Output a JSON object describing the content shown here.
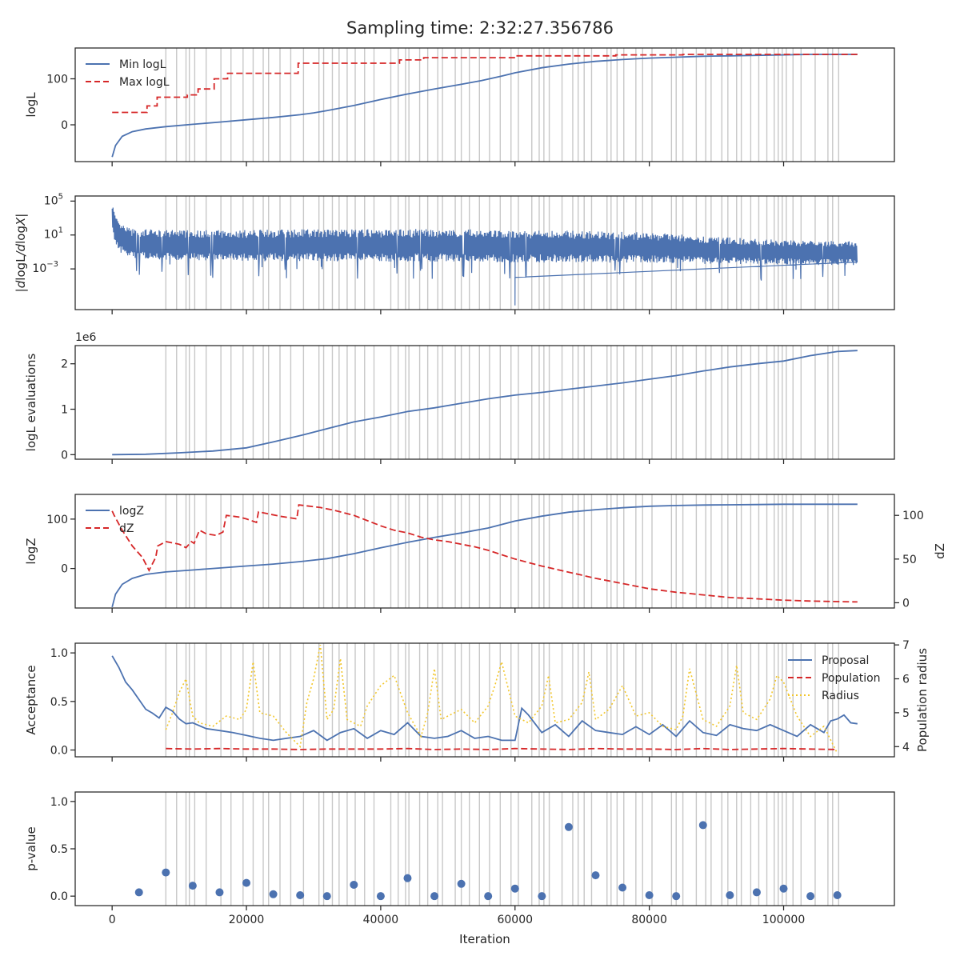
{
  "title": "Sampling time: 2:32:27.356786",
  "xlabel": "Iteration",
  "colors": {
    "blue": "#4c72b0",
    "red": "#d62728",
    "yellow": "#f2c62b",
    "vline": "#c8c8c8",
    "axis": "#262626"
  },
  "chart_data": [
    {
      "type": "line",
      "panel": "logL",
      "ylabel": "logL",
      "xlim": [
        -5500,
        116500
      ],
      "ylim": [
        -80,
        167
      ],
      "yticks": [
        0,
        100
      ],
      "legend_position": "top-left",
      "series": [
        {
          "name": "Min logL",
          "style": "solid",
          "color": "#4c72b0",
          "x": [
            0,
            500,
            1500,
            3000,
            5000,
            8000,
            12000,
            16000,
            20000,
            24000,
            28000,
            30000,
            32000,
            36000,
            40000,
            44000,
            48000,
            52000,
            55000,
            58000,
            60000,
            64000,
            68000,
            72000,
            76000,
            80000,
            84000,
            88000,
            92000,
            96000,
            100000,
            104000,
            108000,
            111000
          ],
          "y": [
            -70,
            -45,
            -25,
            -15,
            -9,
            -4,
            1,
            6,
            11,
            16,
            22,
            26,
            31,
            42,
            55,
            67,
            78,
            88,
            96,
            106,
            113,
            124,
            132,
            138,
            142,
            145,
            147,
            149,
            150,
            151,
            152,
            153,
            153,
            153
          ]
        },
        {
          "name": "Max logL",
          "style": "dashed",
          "color": "#d62728",
          "x": [
            0,
            5200,
            5200,
            6700,
            6700,
            11200,
            11200,
            12800,
            12800,
            15200,
            15200,
            17200,
            17200,
            27700,
            27700,
            42800,
            42800,
            46400,
            46400,
            60000,
            60000,
            75000,
            75000,
            85000,
            85000,
            111000
          ],
          "y": [
            27,
            27,
            41,
            41,
            60,
            60,
            65,
            65,
            78,
            78,
            100,
            100,
            112,
            112,
            134,
            134,
            141,
            141,
            146,
            146,
            150,
            150,
            152,
            152,
            153,
            153
          ]
        }
      ],
      "vlines": [
        8000,
        9600,
        11000,
        11500,
        12300,
        14000,
        16200,
        17700,
        19500,
        21000,
        22500,
        23300,
        25000,
        26600,
        28500,
        30800,
        31500,
        32800,
        33800,
        35000,
        36200,
        37600,
        39000,
        41500,
        42600,
        43700,
        44200,
        45800,
        47000,
        48500,
        49200,
        51100,
        52000,
        53200,
        54700,
        56200,
        57800,
        59400,
        60500,
        62500,
        63600,
        64300,
        65100,
        67000,
        68600,
        69400,
        70300,
        71400,
        73700,
        74300,
        75200,
        76200,
        78000,
        79000,
        80400,
        83300,
        84000,
        85000,
        87000,
        88400,
        89200,
        90800,
        91700,
        93000,
        93700,
        95100,
        96300,
        97500,
        98600,
        99200,
        99800,
        100400,
        101400,
        102600,
        104700,
        106600,
        107300,
        108200
      ]
    },
    {
      "type": "line",
      "panel": "dlogL",
      "ylabel": "|dlogL/dlogX|",
      "yscale": "log",
      "ylim_log10": [
        -7.8,
        5.6
      ],
      "yticks_log10": [
        -3,
        1,
        5
      ],
      "ytick_labels": [
        "10",
        "10",
        "10"
      ],
      "ytick_exponents": [
        "−3",
        "1",
        "5"
      ],
      "series": [
        {
          "name": "",
          "style": "noisy band",
          "color": "#4c72b0",
          "x": [
            0,
            400,
            1000,
            3000,
            10000,
            20000,
            30000,
            40000,
            50000,
            60000,
            70000,
            80000,
            90000,
            100000,
            111000
          ],
          "top_log10": [
            5.0,
            3.5,
            2.4,
            1.7,
            1.6,
            1.6,
            1.7,
            1.7,
            1.7,
            1.6,
            1.5,
            1.3,
            0.8,
            0.4,
            0.3
          ],
          "bottom_log10": [
            1.0,
            -0.5,
            -1.5,
            -2.3,
            -2.5,
            -2.6,
            -2.7,
            -2.7,
            -2.7,
            -2.8,
            -2.8,
            -2.8,
            -2.9,
            -2.9,
            -3.0
          ]
        }
      ]
    },
    {
      "type": "line",
      "panel": "evaluations",
      "ylabel": "logL evaluations",
      "offset_label": "1e6",
      "ylim": [
        -0.1,
        2.4
      ],
      "yticks": [
        0,
        1,
        2
      ],
      "series": [
        {
          "name": "",
          "style": "solid",
          "color": "#4c72b0",
          "x": [
            0,
            5000,
            10000,
            15000,
            20000,
            24000,
            28000,
            32000,
            36000,
            40000,
            44000,
            48000,
            52000,
            56000,
            60000,
            64000,
            68000,
            72000,
            76000,
            80000,
            84000,
            88000,
            92000,
            96000,
            100000,
            104000,
            108000,
            111000
          ],
          "y": [
            0.0,
            0.01,
            0.04,
            0.08,
            0.15,
            0.28,
            0.42,
            0.57,
            0.72,
            0.83,
            0.95,
            1.03,
            1.13,
            1.23,
            1.31,
            1.37,
            1.44,
            1.51,
            1.58,
            1.66,
            1.74,
            1.84,
            1.93,
            2.0,
            2.06,
            2.18,
            2.27,
            2.29
          ]
        }
      ]
    },
    {
      "type": "line",
      "panel": "logZ",
      "ylabel": "logZ",
      "ylabel_right": "dZ",
      "ylim": [
        -80,
        150
      ],
      "yticks": [
        0,
        100
      ],
      "ylim_right": [
        -6,
        124
      ],
      "yticks_right": [
        0,
        50,
        100
      ],
      "legend_position": "top-left",
      "series": [
        {
          "name": "logZ",
          "style": "solid",
          "color": "#4c72b0",
          "axis": "left",
          "x": [
            0,
            500,
            1500,
            3000,
            5000,
            8000,
            12000,
            16000,
            20000,
            24000,
            28000,
            32000,
            36000,
            40000,
            44000,
            48000,
            52000,
            56000,
            60000,
            64000,
            68000,
            72000,
            76000,
            80000,
            84000,
            88000,
            92000,
            96000,
            100000,
            104000,
            108000,
            111000
          ],
          "y": [
            -78,
            -52,
            -32,
            -20,
            -12,
            -7,
            -3,
            1,
            5,
            9,
            14,
            20,
            30,
            42,
            53,
            63,
            72,
            82,
            96,
            106,
            114,
            119,
            123,
            126,
            127.5,
            128.5,
            129,
            129.5,
            130,
            130,
            130,
            130
          ]
        },
        {
          "name": "dZ",
          "style": "dashed",
          "color": "#d62728",
          "axis": "right",
          "x": [
            0,
            300,
            1500,
            3000,
            4500,
            5500,
            6500,
            6800,
            8000,
            10000,
            11000,
            11800,
            12200,
            13000,
            14000,
            15500,
            16500,
            17000,
            18000,
            19000,
            20000,
            21500,
            21800,
            25000,
            27500,
            27800,
            31000,
            33000,
            36000,
            40000,
            42000,
            44000,
            46000,
            48000,
            50000,
            52000,
            54000,
            56000,
            58000,
            60000,
            64000,
            68000,
            72000,
            76000,
            80000,
            84000,
            88000,
            92000,
            96000,
            100000,
            104000,
            108000,
            111000
          ],
          "y": [
            105,
            100,
            83,
            65,
            52,
            37,
            52,
            65,
            70,
            67,
            63,
            70,
            68,
            83,
            79,
            77,
            81,
            100,
            99,
            98,
            96,
            92,
            104,
            99,
            96,
            112,
            109,
            106,
            100,
            88,
            83,
            80,
            75,
            72,
            70,
            67,
            64,
            60,
            55,
            50,
            42,
            35,
            28,
            22,
            16,
            12,
            9,
            6,
            4.5,
            3,
            2,
            1.3,
            1
          ]
        }
      ]
    },
    {
      "type": "line",
      "panel": "acceptance",
      "ylabel": "Acceptance",
      "ylabel_right": "Population radius",
      "ylim": [
        -0.07,
        1.1
      ],
      "yticks": [
        0.0,
        0.5,
        1.0
      ],
      "ylim_right": [
        3.7,
        7.05
      ],
      "yticks_right": [
        4,
        5,
        6,
        7
      ],
      "legend_position": "top-right",
      "series": [
        {
          "name": "Proposal",
          "style": "solid",
          "color": "#4c72b0",
          "axis": "left",
          "x": [
            0,
            1000,
            2000,
            3000,
            4000,
            5000,
            6000,
            7000,
            8000,
            9000,
            10000,
            11000,
            12000,
            14000,
            16000,
            18000,
            20000,
            22000,
            24000,
            26000,
            28000,
            30000,
            32000,
            34000,
            36000,
            38000,
            40000,
            42000,
            44000,
            46000,
            48000,
            50000,
            52000,
            54000,
            56000,
            58000,
            60000,
            61000,
            62000,
            64000,
            66000,
            68000,
            70000,
            72000,
            74000,
            76000,
            78000,
            80000,
            82000,
            84000,
            86000,
            88000,
            90000,
            92000,
            94000,
            96000,
            98000,
            100000,
            102000,
            104000,
            106000,
            107000,
            108000,
            109000,
            110000,
            111000
          ],
          "y": [
            0.97,
            0.85,
            0.7,
            0.62,
            0.52,
            0.42,
            0.38,
            0.33,
            0.44,
            0.4,
            0.32,
            0.27,
            0.28,
            0.22,
            0.2,
            0.18,
            0.15,
            0.12,
            0.1,
            0.12,
            0.14,
            0.2,
            0.1,
            0.18,
            0.22,
            0.12,
            0.2,
            0.16,
            0.28,
            0.14,
            0.12,
            0.14,
            0.2,
            0.12,
            0.14,
            0.1,
            0.1,
            0.43,
            0.36,
            0.18,
            0.26,
            0.14,
            0.3,
            0.2,
            0.18,
            0.16,
            0.24,
            0.16,
            0.26,
            0.14,
            0.3,
            0.18,
            0.15,
            0.26,
            0.22,
            0.2,
            0.26,
            0.2,
            0.14,
            0.26,
            0.18,
            0.3,
            0.32,
            0.36,
            0.28,
            0.27
          ]
        },
        {
          "name": "Population",
          "style": "dashed",
          "color": "#d62728",
          "axis": "left",
          "x": [
            8000,
            12000,
            16000,
            20000,
            24000,
            28000,
            32000,
            36000,
            40000,
            44000,
            48000,
            52000,
            56000,
            60000,
            64000,
            68000,
            72000,
            76000,
            80000,
            84000,
            88000,
            92000,
            96000,
            100000,
            104000,
            108000
          ],
          "y": [
            0.015,
            0.01,
            0.015,
            0.01,
            0.01,
            0.005,
            0.01,
            0.01,
            0.01,
            0.015,
            0.005,
            0.01,
            0.005,
            0.015,
            0.01,
            0.005,
            0.015,
            0.01,
            0.01,
            0.005,
            0.015,
            0.005,
            0.01,
            0.015,
            0.01,
            0.005
          ]
        },
        {
          "name": "Radius",
          "style": "dotted",
          "color": "#f2c62b",
          "axis": "right",
          "x": [
            8000,
            9000,
            10000,
            11000,
            12000,
            13000,
            15000,
            17000,
            19000,
            20000,
            21000,
            22000,
            24000,
            26000,
            28000,
            29000,
            30000,
            31000,
            32000,
            33000,
            34000,
            35000,
            37000,
            38000,
            40000,
            42000,
            44000,
            46000,
            47000,
            48000,
            49000,
            50000,
            52000,
            54000,
            56000,
            57000,
            58000,
            60000,
            62000,
            64000,
            65000,
            66000,
            68000,
            70000,
            71000,
            72000,
            74000,
            76000,
            78000,
            80000,
            82000,
            84000,
            85000,
            86000,
            88000,
            90000,
            92000,
            93000,
            94000,
            96000,
            98000,
            99000,
            100000,
            102000,
            104000,
            106000,
            108000
          ],
          "y": [
            4.5,
            5.0,
            5.6,
            6.0,
            4.9,
            4.7,
            4.6,
            4.9,
            4.8,
            5.1,
            6.5,
            5.0,
            4.9,
            4.4,
            4.0,
            5.3,
            6.0,
            7.0,
            4.8,
            5.1,
            6.6,
            4.8,
            4.6,
            5.2,
            5.8,
            6.1,
            5.0,
            4.3,
            5.0,
            6.3,
            4.8,
            4.9,
            5.1,
            4.7,
            5.2,
            5.8,
            6.5,
            4.9,
            4.7,
            5.2,
            6.1,
            4.7,
            4.8,
            5.3,
            6.2,
            4.8,
            5.1,
            5.8,
            4.9,
            5.0,
            4.6,
            4.5,
            4.9,
            6.3,
            4.8,
            4.6,
            5.2,
            6.4,
            5.0,
            4.8,
            5.4,
            6.1,
            5.9,
            4.9,
            4.3,
            4.6,
            3.8
          ]
        }
      ]
    },
    {
      "type": "scatter",
      "panel": "pvalue",
      "ylabel": "p-value",
      "ylim": [
        -0.1,
        1.1
      ],
      "yticks": [
        0.0,
        0.5,
        1.0
      ],
      "xticks": [
        0,
        20000,
        40000,
        60000,
        80000,
        100000
      ],
      "xtick_labels": [
        "0",
        "20000",
        "40000",
        "60000",
        "80000",
        "100000"
      ],
      "series": [
        {
          "name": "",
          "color": "#4c72b0",
          "x": [
            4000,
            8000,
            12000,
            16000,
            20000,
            24000,
            28000,
            32000,
            36000,
            40000,
            44000,
            48000,
            52000,
            56000,
            60000,
            64000,
            68000,
            72000,
            76000,
            80000,
            84000,
            88000,
            92000,
            96000,
            100000,
            104000,
            108000
          ],
          "y": [
            0.04,
            0.25,
            0.11,
            0.04,
            0.14,
            0.02,
            0.01,
            0.0,
            0.12,
            0.0,
            0.19,
            0.0,
            0.13,
            0.0,
            0.08,
            0.0,
            0.73,
            0.22,
            0.09,
            0.01,
            0.0,
            0.75,
            0.01,
            0.04,
            0.08,
            0.0,
            0.01
          ]
        }
      ]
    }
  ]
}
